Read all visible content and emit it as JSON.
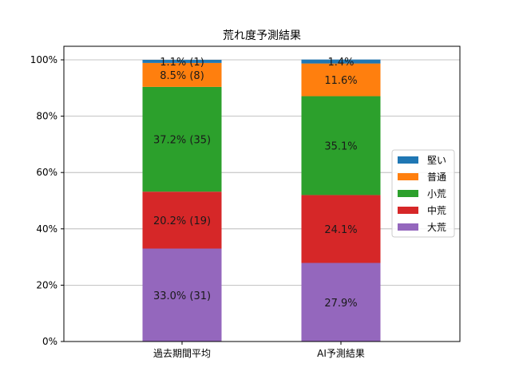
{
  "chart_data": {
    "type": "bar",
    "stacked": true,
    "title": "荒れ度予測結果",
    "categories": [
      "過去期間平均",
      "AI予測結果"
    ],
    "ylim": [
      0,
      100
    ],
    "yticks": [
      0,
      20,
      40,
      60,
      80,
      100
    ],
    "ytick_labels": [
      "0%",
      "20%",
      "40%",
      "60%",
      "80%",
      "100%"
    ],
    "grid": "horizontal",
    "legend_position": "right",
    "series": [
      {
        "name": "大荒",
        "color": "#9467bd",
        "values": [
          33.0,
          27.9
        ],
        "labels": [
          "33.0% (31)",
          "27.9%"
        ]
      },
      {
        "name": "中荒",
        "color": "#d62728",
        "values": [
          20.2,
          24.1
        ],
        "labels": [
          "20.2% (19)",
          "24.1%"
        ]
      },
      {
        "name": "小荒",
        "color": "#2ca02c",
        "values": [
          37.2,
          35.1
        ],
        "labels": [
          "37.2% (35)",
          "35.1%"
        ]
      },
      {
        "name": "普通",
        "color": "#ff7f0e",
        "values": [
          8.5,
          11.6
        ],
        "labels": [
          "8.5% (8)",
          "11.6%"
        ]
      },
      {
        "name": "堅い",
        "color": "#1f77b4",
        "values": [
          1.1,
          1.4
        ],
        "labels": [
          "1.1% (1)",
          "1.4%"
        ]
      }
    ],
    "legend_order": [
      "堅い",
      "普通",
      "小荒",
      "中荒",
      "大荒"
    ]
  }
}
